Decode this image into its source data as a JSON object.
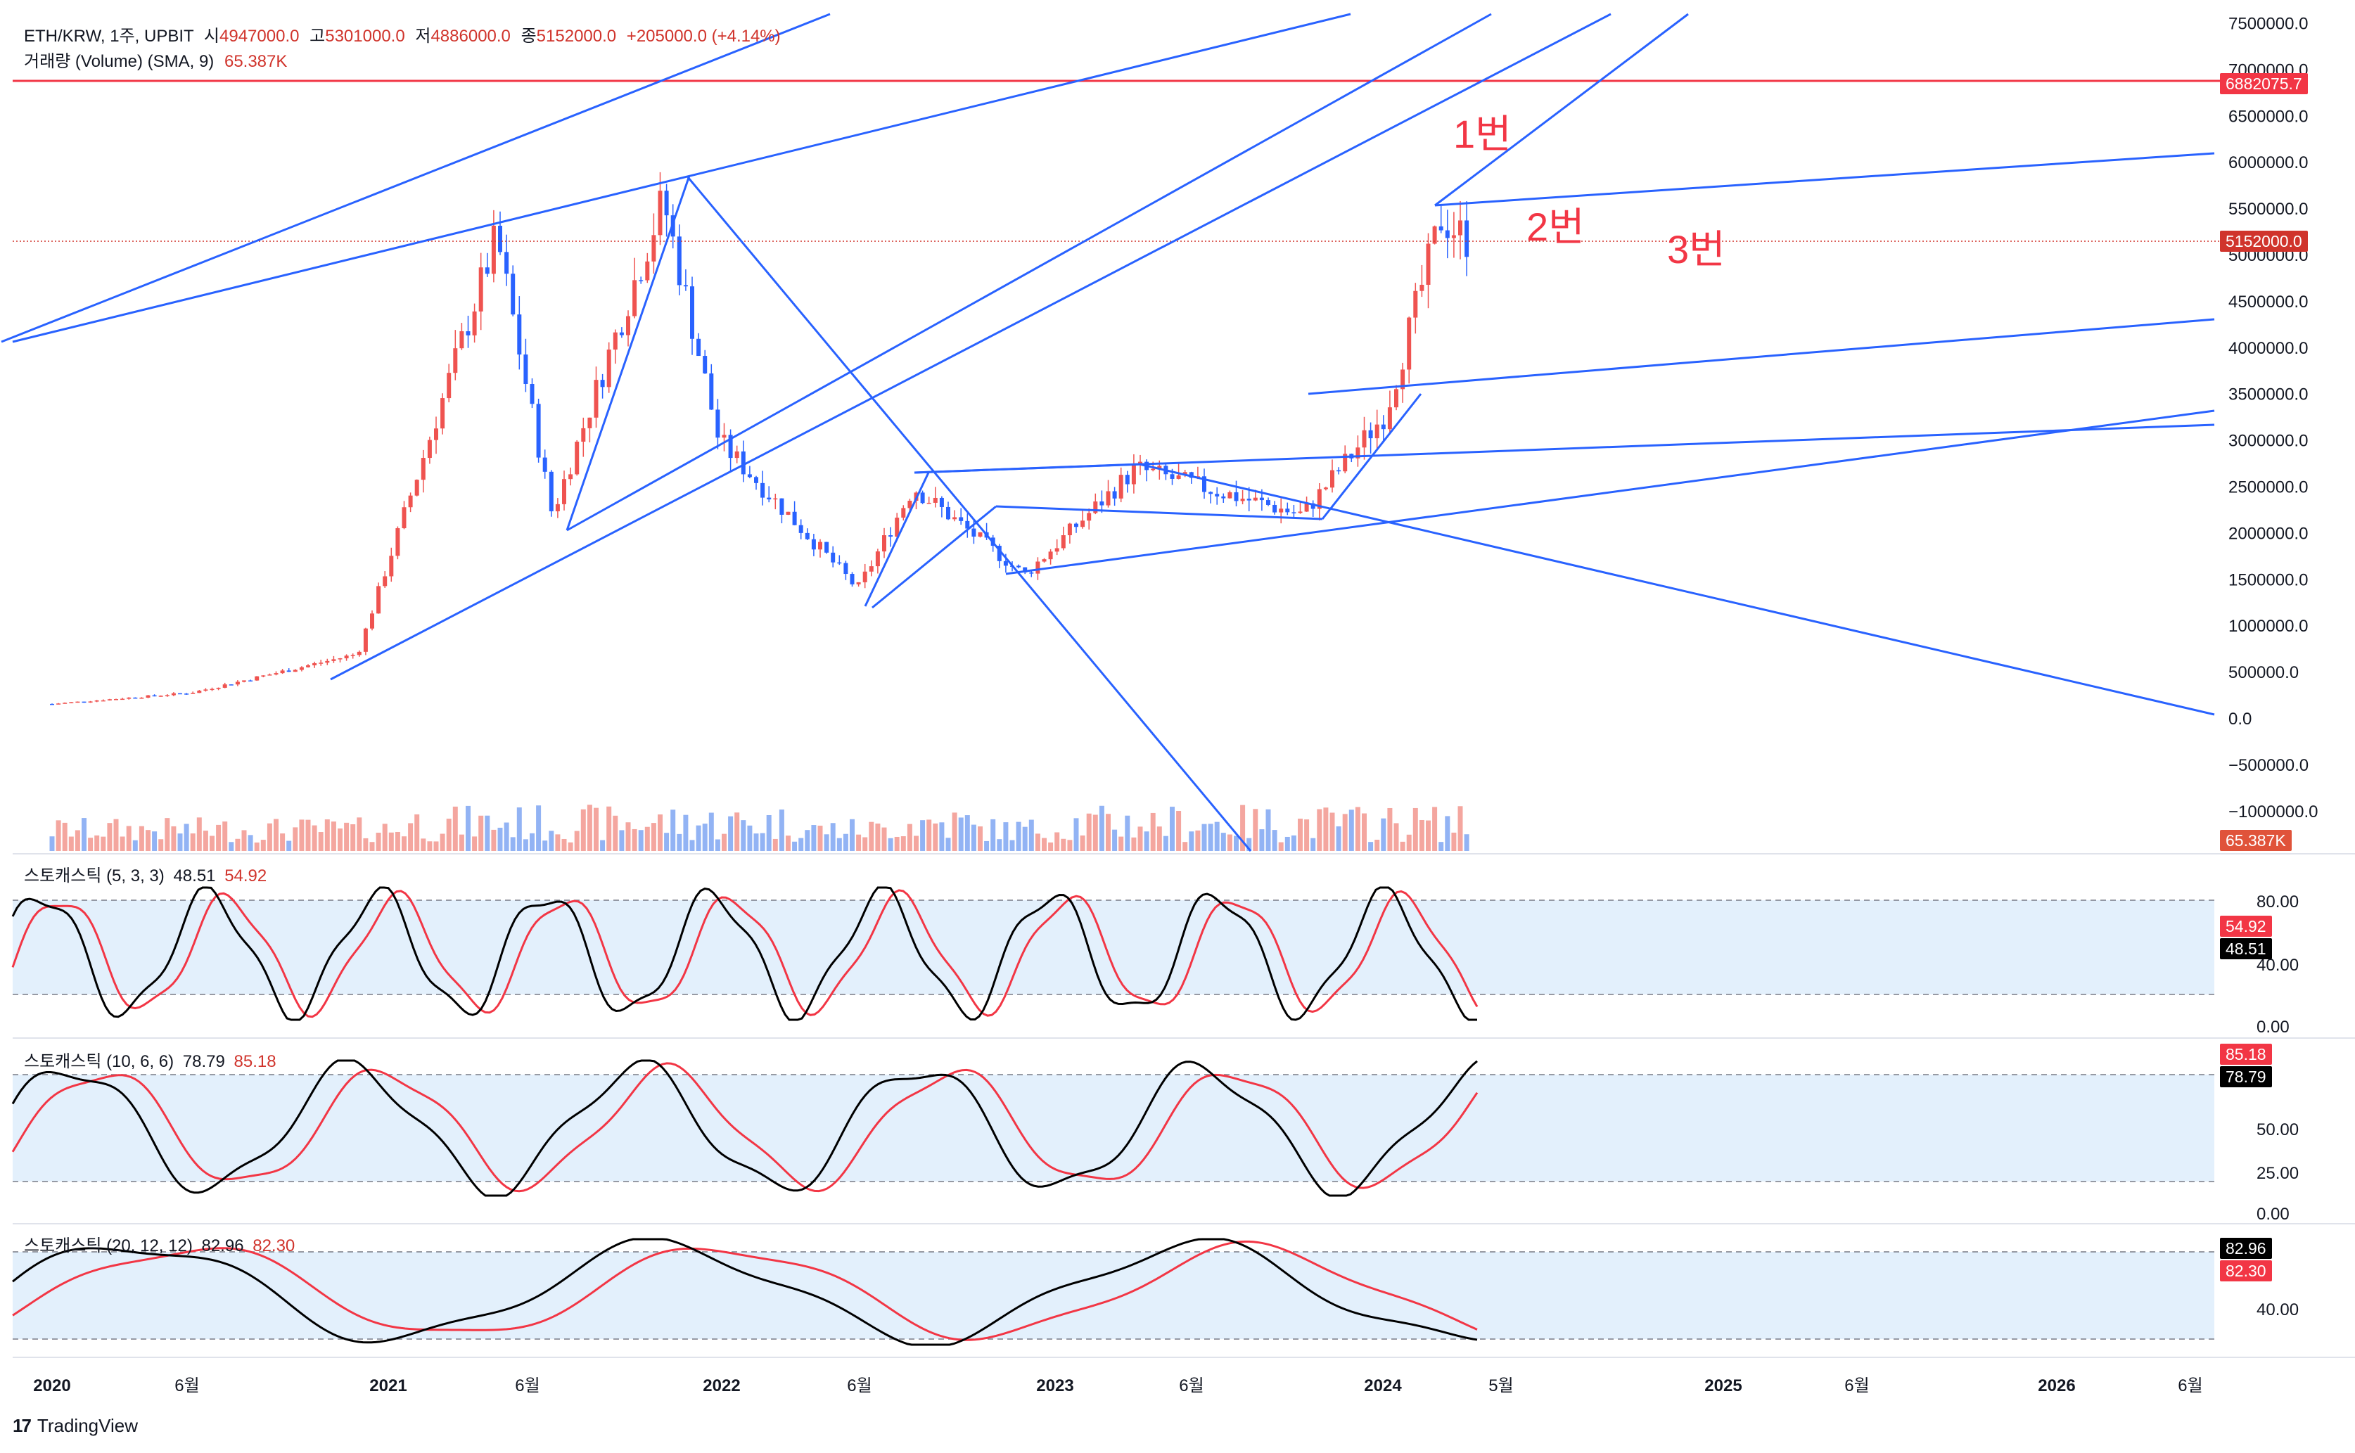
{
  "header": {
    "symbol": "ETH/KRW, 1주, UPBIT",
    "o_label": "시",
    "o_val": "4947000.0",
    "h_label": "고",
    "h_val": "5301000.0",
    "l_label": "저",
    "l_val": "4886000.0",
    "c_label": "종",
    "c_val": "5152000.0",
    "change": "+205000.0 (+4.14%)",
    "volume_label": "거래량 (Volume) (SMA, 9)",
    "volume_val": "65.387K"
  },
  "annotations": [
    "1번",
    "2번",
    "3번"
  ],
  "price_axis": {
    "ticks": [
      "7500000.0",
      "7000000.0",
      "6500000.0",
      "6000000.0",
      "5500000.0",
      "5000000.0",
      "4500000.0",
      "4000000.0",
      "3500000.0",
      "3000000.0",
      "2500000.0",
      "2000000.0",
      "1500000.0",
      "1000000.0",
      "500000.0",
      "0.0",
      "−500000.0",
      "−1000000.0"
    ],
    "resistance_tag": "6882075.7",
    "last_price_tag": "5152000.0",
    "volume_tag": "65.387K"
  },
  "time_axis": [
    "2020",
    "6월",
    "2021",
    "6월",
    "2022",
    "6월",
    "2023",
    "6월",
    "2024",
    "5월",
    "2025",
    "6월",
    "2026",
    "6월"
  ],
  "stoch1": {
    "label": "스토캐스틱 (5, 3, 3)",
    "k": "48.51",
    "d": "54.92",
    "ticks": [
      "80.00",
      "40.00",
      "0.00"
    ]
  },
  "stoch2": {
    "label": "스토캐스틱 (10, 6, 6)",
    "k": "78.79",
    "d": "85.18",
    "ticks": [
      "50.00",
      "25.00",
      "0.00"
    ]
  },
  "stoch3": {
    "label": "스토캐스틱 (20, 12, 12)",
    "k": "82.96",
    "d": "82.30",
    "ticks": [
      "40.00"
    ]
  },
  "footer": {
    "logo": "17",
    "brand": "TradingView"
  },
  "colors": {
    "up": "#ef5350",
    "down": "#2962ff",
    "trend": "#2962ff",
    "resistance": "#f23645",
    "k_line": "#000000",
    "d_line": "#f23645",
    "band": "#e3f0fc"
  },
  "chart_data": {
    "type": "candlestick",
    "interval": "1주",
    "ylim": [
      -1000000,
      7500000
    ],
    "resistance_level": 6882075.7,
    "last_close": 5152000,
    "anchors": [
      {
        "date": "2020-01",
        "price": 160000
      },
      {
        "date": "2020-06",
        "price": 280000
      },
      {
        "date": "2020-12",
        "price": 700000
      },
      {
        "date": "2021-05",
        "price": 5200000
      },
      {
        "date": "2021-07",
        "price": 2200000
      },
      {
        "date": "2021-11",
        "price": 5600000
      },
      {
        "date": "2022-01",
        "price": 3000000
      },
      {
        "date": "2022-06",
        "price": 1400000
      },
      {
        "date": "2022-08",
        "price": 2500000
      },
      {
        "date": "2022-12",
        "price": 1550000
      },
      {
        "date": "2023-04",
        "price": 2700000
      },
      {
        "date": "2023-10",
        "price": 2200000
      },
      {
        "date": "2024-01",
        "price": 3300000
      },
      {
        "date": "2024-03",
        "price": 5400000
      },
      {
        "date": "2024-04",
        "price": 5152000
      }
    ]
  }
}
